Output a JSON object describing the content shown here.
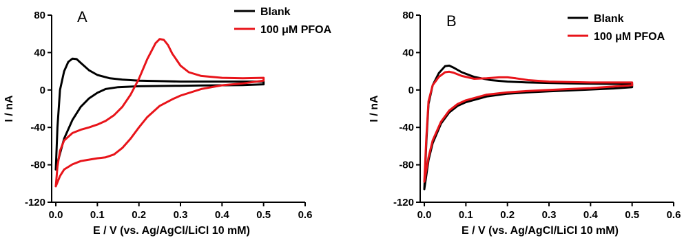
{
  "figure": {
    "background": "#ffffff"
  },
  "chart_data": [
    {
      "type": "line",
      "panel_label": "A",
      "xlabel": "E / V (vs. Ag/AgCl/LiCl 10 mM)",
      "ylabel": "I / nA",
      "xlim": [
        -0.01,
        0.6
      ],
      "ylim": [
        -120,
        80
      ],
      "xticks": [
        "0.0",
        "0.1",
        "0.2",
        "0.3",
        "0.4",
        "0.5",
        "0.6"
      ],
      "yticks": [
        "-120",
        "-80",
        "-40",
        "0",
        "40",
        "80"
      ],
      "grid": false,
      "legend_position": "top-right",
      "series": [
        {
          "name": "Blank",
          "color": "#000000",
          "points": [
            [
              0.0,
              -85
            ],
            [
              0.004,
              -40
            ],
            [
              0.01,
              0
            ],
            [
              0.02,
              20
            ],
            [
              0.03,
              30
            ],
            [
              0.04,
              33.5
            ],
            [
              0.05,
              33
            ],
            [
              0.06,
              29
            ],
            [
              0.08,
              21
            ],
            [
              0.1,
              16
            ],
            [
              0.13,
              12.5
            ],
            [
              0.16,
              11
            ],
            [
              0.2,
              10
            ],
            [
              0.25,
              9.5
            ],
            [
              0.3,
              9
            ],
            [
              0.35,
              9
            ],
            [
              0.4,
              9
            ],
            [
              0.45,
              9
            ],
            [
              0.5,
              9
            ],
            [
              0.5,
              6
            ],
            [
              0.45,
              5.2
            ],
            [
              0.4,
              5
            ],
            [
              0.35,
              4.8
            ],
            [
              0.3,
              4.5
            ],
            [
              0.25,
              4.3
            ],
            [
              0.2,
              4
            ],
            [
              0.15,
              3
            ],
            [
              0.12,
              1
            ],
            [
              0.1,
              -3
            ],
            [
              0.08,
              -9
            ],
            [
              0.06,
              -18
            ],
            [
              0.04,
              -32
            ],
            [
              0.02,
              -52
            ],
            [
              0.01,
              -68
            ],
            [
              0.0,
              -85
            ]
          ]
        },
        {
          "name": "100 μM PFOA",
          "color": "#e8141a",
          "points": [
            [
              0.0,
              -103
            ],
            [
              0.004,
              -82
            ],
            [
              0.01,
              -65
            ],
            [
              0.02,
              -54
            ],
            [
              0.04,
              -46
            ],
            [
              0.06,
              -42.5
            ],
            [
              0.08,
              -40
            ],
            [
              0.1,
              -37
            ],
            [
              0.12,
              -33
            ],
            [
              0.14,
              -27
            ],
            [
              0.16,
              -18
            ],
            [
              0.18,
              -5
            ],
            [
              0.2,
              12
            ],
            [
              0.22,
              33
            ],
            [
              0.24,
              50
            ],
            [
              0.25,
              54.5
            ],
            [
              0.26,
              53.5
            ],
            [
              0.27,
              48
            ],
            [
              0.28,
              39
            ],
            [
              0.3,
              26
            ],
            [
              0.32,
              19
            ],
            [
              0.35,
              15
            ],
            [
              0.4,
              13
            ],
            [
              0.45,
              12.5
            ],
            [
              0.5,
              13
            ],
            [
              0.5,
              10
            ],
            [
              0.45,
              7
            ],
            [
              0.4,
              5
            ],
            [
              0.35,
              1
            ],
            [
              0.3,
              -6
            ],
            [
              0.28,
              -10
            ],
            [
              0.25,
              -17
            ],
            [
              0.22,
              -29
            ],
            [
              0.2,
              -40
            ],
            [
              0.18,
              -52
            ],
            [
              0.16,
              -62
            ],
            [
              0.14,
              -69
            ],
            [
              0.12,
              -72
            ],
            [
              0.1,
              -73
            ],
            [
              0.08,
              -74.5
            ],
            [
              0.06,
              -76
            ],
            [
              0.04,
              -79.5
            ],
            [
              0.02,
              -85
            ],
            [
              0.01,
              -92
            ],
            [
              0.0,
              -103
            ]
          ]
        }
      ]
    },
    {
      "type": "line",
      "panel_label": "B",
      "xlabel": "E / V (vs. Ag/AgCl/LiCl 10 mM)",
      "ylabel": "I / nA",
      "xlim": [
        -0.01,
        0.6
      ],
      "ylim": [
        -120,
        80
      ],
      "xticks": [
        "0.0",
        "0.1",
        "0.2",
        "0.3",
        "0.4",
        "0.5",
        "0.6"
      ],
      "yticks": [
        "-120",
        "-80",
        "-40",
        "0",
        "40",
        "80"
      ],
      "grid": false,
      "legend_position": "top-right",
      "series": [
        {
          "name": "Blank",
          "color": "#000000",
          "points": [
            [
              0.0,
              -106
            ],
            [
              0.005,
              -55
            ],
            [
              0.01,
              -15
            ],
            [
              0.02,
              5
            ],
            [
              0.035,
              18
            ],
            [
              0.05,
              25.5
            ],
            [
              0.06,
              26
            ],
            [
              0.07,
              24
            ],
            [
              0.09,
              19
            ],
            [
              0.12,
              14
            ],
            [
              0.16,
              10.5
            ],
            [
              0.2,
              9
            ],
            [
              0.25,
              8
            ],
            [
              0.3,
              7.5
            ],
            [
              0.35,
              7
            ],
            [
              0.4,
              6.8
            ],
            [
              0.45,
              6.5
            ],
            [
              0.5,
              6.5
            ],
            [
              0.5,
              3
            ],
            [
              0.45,
              1.5
            ],
            [
              0.4,
              0.5
            ],
            [
              0.35,
              -0.5
            ],
            [
              0.3,
              -1.5
            ],
            [
              0.25,
              -2.5
            ],
            [
              0.2,
              -4
            ],
            [
              0.15,
              -7
            ],
            [
              0.1,
              -13
            ],
            [
              0.08,
              -17
            ],
            [
              0.06,
              -24
            ],
            [
              0.04,
              -36
            ],
            [
              0.02,
              -57
            ],
            [
              0.01,
              -75
            ],
            [
              0.0,
              -106
            ]
          ]
        },
        {
          "name": "100 μM PFOA",
          "color": "#e8141a",
          "points": [
            [
              0.0,
              -98
            ],
            [
              0.005,
              -50
            ],
            [
              0.01,
              -12
            ],
            [
              0.02,
              5
            ],
            [
              0.035,
              14
            ],
            [
              0.05,
              19
            ],
            [
              0.06,
              19.5
            ],
            [
              0.07,
              18.5
            ],
            [
              0.09,
              15
            ],
            [
              0.12,
              12
            ],
            [
              0.15,
              12.5
            ],
            [
              0.18,
              13.5
            ],
            [
              0.2,
              13.5
            ],
            [
              0.22,
              12.5
            ],
            [
              0.25,
              10.5
            ],
            [
              0.3,
              9
            ],
            [
              0.35,
              8.5
            ],
            [
              0.4,
              8
            ],
            [
              0.45,
              8
            ],
            [
              0.5,
              8
            ],
            [
              0.5,
              5
            ],
            [
              0.45,
              3.5
            ],
            [
              0.4,
              2
            ],
            [
              0.35,
              1
            ],
            [
              0.3,
              0
            ],
            [
              0.25,
              -1
            ],
            [
              0.2,
              -2.5
            ],
            [
              0.15,
              -5
            ],
            [
              0.1,
              -11
            ],
            [
              0.08,
              -15
            ],
            [
              0.06,
              -22
            ],
            [
              0.04,
              -34
            ],
            [
              0.02,
              -54
            ],
            [
              0.01,
              -72
            ],
            [
              0.0,
              -98
            ]
          ]
        }
      ]
    }
  ]
}
